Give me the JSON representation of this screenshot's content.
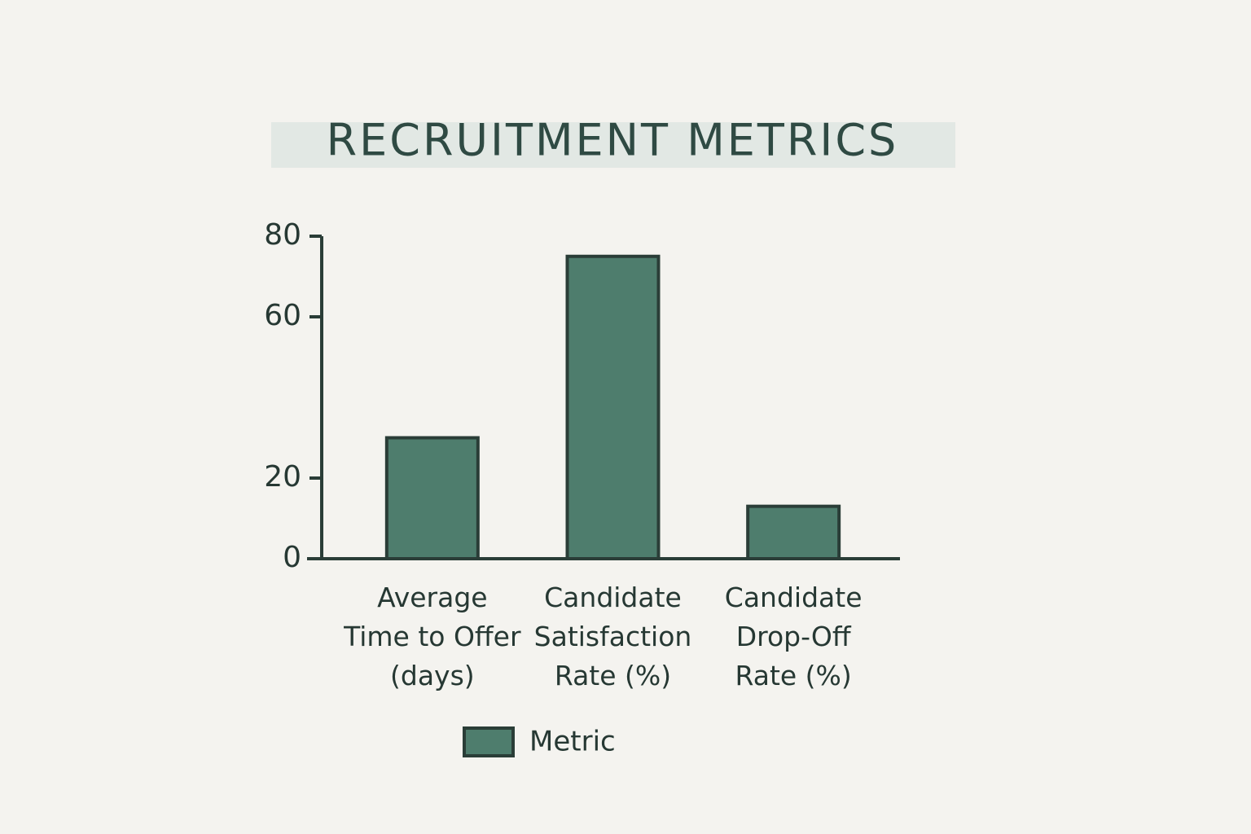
{
  "chart_data": {
    "type": "bar",
    "title": "RECRUITMENT METRICS",
    "categories": [
      "Average Time to Offer (days)",
      "Candidate Satisfaction Rate (%)",
      "Candidate Drop-Off Rate (%)"
    ],
    "series": [
      {
        "name": "Metric",
        "color": "#4e7d6d",
        "values": [
          30,
          75,
          13
        ]
      }
    ],
    "ylim": [
      0,
      80
    ],
    "yticks": [
      0,
      20,
      60,
      80
    ],
    "grid": false,
    "legend": "bottom"
  }
}
